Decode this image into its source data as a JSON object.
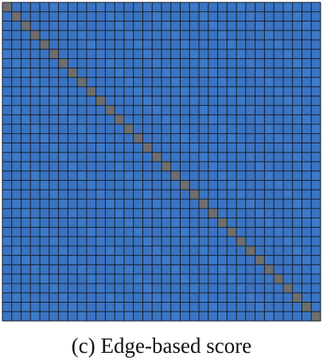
{
  "caption": "(c) Edge-based score",
  "chart_data": {
    "type": "heatmap",
    "rows": 34,
    "cols": 34,
    "diagonal": "masked",
    "colors": {
      "cell": "#3a74c3",
      "cell_alt": "#3d7ac9",
      "diagonal": "#6e6e6e",
      "grid_line": "#1a1f2a"
    }
  }
}
